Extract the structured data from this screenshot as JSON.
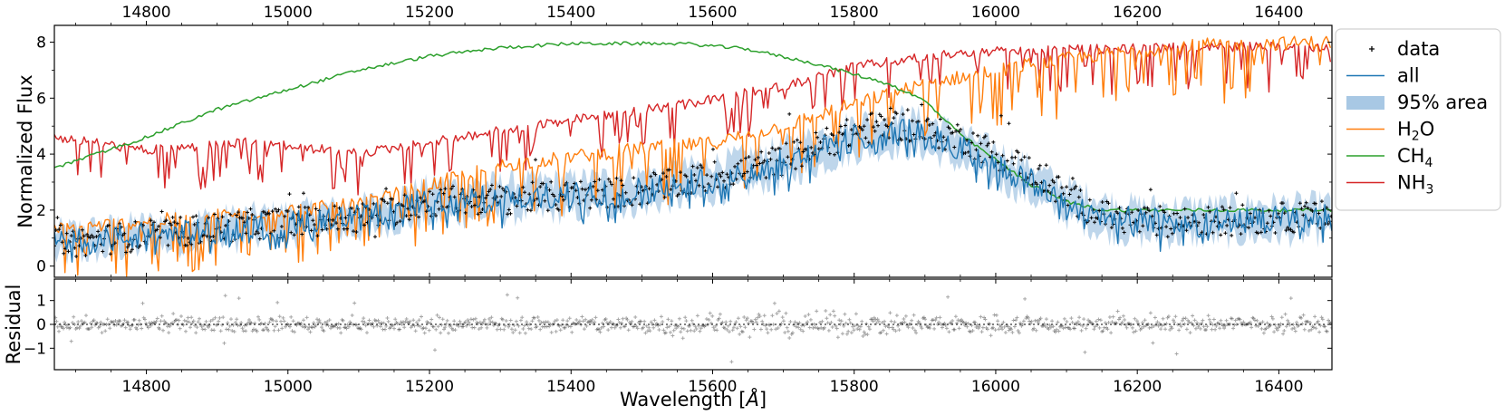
{
  "chart_data": [
    {
      "type": "line",
      "panel": "main",
      "xlabel": "",
      "ylabel": "Normalized Flux",
      "xlim": [
        14670,
        16475
      ],
      "ylim": [
        -0.4,
        8.6
      ],
      "x_ticks": [
        14800,
        15000,
        15200,
        15400,
        15600,
        15800,
        16000,
        16200,
        16400
      ],
      "x_tick_labels": [
        "14800",
        "15000",
        "15200",
        "15400",
        "15600",
        "15800",
        "16000",
        "16200",
        "16400"
      ],
      "y_ticks": [
        0,
        2,
        4,
        6,
        8
      ],
      "y_tick_labels": [
        "0",
        "2",
        "4",
        "6",
        "8"
      ],
      "grid": false,
      "legend_position": "outside-right",
      "legend": [
        {
          "key": "data",
          "label": "data",
          "marker": "+",
          "color": "#000000"
        },
        {
          "key": "all",
          "label": "all",
          "marker": "line",
          "color": "#1f77b4"
        },
        {
          "key": "area",
          "label": "95% area",
          "marker": "patch",
          "color": "#a8c8e4"
        },
        {
          "key": "h2o",
          "label": "H",
          "sub": "2",
          "tail": "O",
          "marker": "line",
          "color": "#ff7f0e"
        },
        {
          "key": "ch4",
          "label": "CH",
          "sub": "4",
          "tail": "",
          "marker": "line",
          "color": "#2ca02c"
        },
        {
          "key": "nh3",
          "label": "NH",
          "sub": "3",
          "tail": "",
          "marker": "line",
          "color": "#d62728"
        }
      ],
      "series": [
        {
          "name": "CH4",
          "color": "#2ca02c",
          "x": [
            14670,
            14800,
            14900,
            15000,
            15100,
            15200,
            15300,
            15400,
            15500,
            15560,
            15650,
            15750,
            15850,
            15900,
            15950,
            16000,
            16050,
            16100,
            16150,
            16475
          ],
          "y": [
            3.5,
            4.6,
            5.6,
            6.3,
            7.0,
            7.5,
            7.8,
            7.95,
            7.95,
            7.95,
            7.75,
            7.2,
            6.5,
            5.9,
            4.7,
            3.8,
            2.9,
            2.3,
            2.0,
            2.0
          ]
        },
        {
          "name": "NH3",
          "color": "#d62728",
          "x": [
            14670,
            14800,
            14950,
            15100,
            15250,
            15400,
            15550,
            15700,
            15800,
            15950,
            16100,
            16300,
            16475
          ],
          "y": [
            4.8,
            4.3,
            4.6,
            4.2,
            4.8,
            5.4,
            5.9,
            6.6,
            7.3,
            7.8,
            7.9,
            8.0,
            8.0
          ]
        },
        {
          "name": "H2O",
          "color": "#ff7f0e",
          "x": [
            14670,
            14800,
            14950,
            15100,
            15200,
            15300,
            15400,
            15500,
            15600,
            15700,
            15800,
            15900,
            16000,
            16100,
            16200,
            16300,
            16475
          ],
          "y": [
            1.3,
            1.6,
            1.9,
            2.2,
            2.9,
            3.6,
            3.9,
            4.2,
            4.4,
            5.0,
            5.8,
            6.5,
            7.0,
            7.4,
            7.7,
            7.9,
            8.0
          ]
        },
        {
          "name": "all",
          "color": "#1f77b4",
          "x": [
            14670,
            14800,
            14950,
            15100,
            15200,
            15300,
            15400,
            15500,
            15600,
            15700,
            15800,
            15850,
            15900,
            15950,
            16000,
            16050,
            16100,
            16150,
            16200,
            16300,
            16475
          ],
          "y": [
            0.8,
            1.1,
            1.4,
            1.7,
            2.3,
            2.4,
            2.5,
            2.7,
            3.1,
            3.7,
            4.6,
            4.8,
            4.7,
            4.2,
            3.6,
            3.0,
            2.3,
            1.8,
            1.6,
            1.6,
            1.7
          ]
        },
        {
          "name": "95% area",
          "color": "#a8c8e4",
          "x": [
            14670,
            14800,
            14950,
            15100,
            15200,
            15300,
            15400,
            15500,
            15600,
            15700,
            15800,
            15850,
            15900,
            15950,
            16000,
            16050,
            16100,
            16150,
            16200,
            16300,
            16475
          ],
          "lower": [
            0.3,
            0.6,
            0.9,
            1.2,
            1.7,
            1.8,
            1.9,
            2.1,
            2.5,
            3.1,
            4.0,
            4.2,
            4.1,
            3.6,
            3.0,
            2.4,
            1.7,
            1.2,
            1.0,
            1.0,
            1.1
          ],
          "upper": [
            1.3,
            1.6,
            1.9,
            2.2,
            2.9,
            3.0,
            3.1,
            3.3,
            3.7,
            4.3,
            5.2,
            5.4,
            5.3,
            4.8,
            4.2,
            3.6,
            2.9,
            2.4,
            2.2,
            2.2,
            2.3
          ]
        },
        {
          "name": "data",
          "color": "#000000",
          "marker": "+",
          "x": [
            14670,
            14800,
            14950,
            15100,
            15200,
            15300,
            15400,
            15500,
            15600,
            15700,
            15800,
            15850,
            15900,
            15950,
            16000,
            16050,
            16100,
            16150,
            16200,
            16300,
            16475
          ],
          "y": [
            0.8,
            1.1,
            1.5,
            1.7,
            2.3,
            2.4,
            2.5,
            2.7,
            3.2,
            3.8,
            4.8,
            5.1,
            4.8,
            4.6,
            4.0,
            3.4,
            2.5,
            1.8,
            1.6,
            1.6,
            1.8
          ]
        }
      ]
    },
    {
      "type": "scatter",
      "panel": "residual",
      "xlabel": "Wavelength [Å]",
      "xlabel_text": "Wavelength [",
      "xlabel_unit": "Å",
      "xlabel_close": "]",
      "ylabel": "Residual",
      "xlim": [
        14670,
        16475
      ],
      "ylim": [
        -1.9,
        1.9
      ],
      "x_ticks": [
        14800,
        15000,
        15200,
        15400,
        15600,
        15800,
        16000,
        16200,
        16400
      ],
      "x_tick_labels": [
        "14800",
        "15000",
        "15200",
        "15400",
        "15600",
        "15800",
        "16000",
        "16200",
        "16400"
      ],
      "y_ticks": [
        -1,
        0,
        1
      ],
      "y_tick_labels": [
        "−1",
        "0",
        "1"
      ],
      "zero_line": "dotted",
      "series": [
        {
          "name": "residual",
          "color": "#000000",
          "marker": "+",
          "alpha": 0.35,
          "x": [
            14670,
            15000,
            15400,
            15700,
            16000,
            16300,
            16475
          ],
          "y_center": [
            0,
            0,
            0,
            0,
            0,
            0,
            0
          ],
          "spread": [
            0.3,
            0.35,
            0.4,
            0.55,
            0.45,
            0.4,
            0.3
          ]
        }
      ]
    }
  ]
}
